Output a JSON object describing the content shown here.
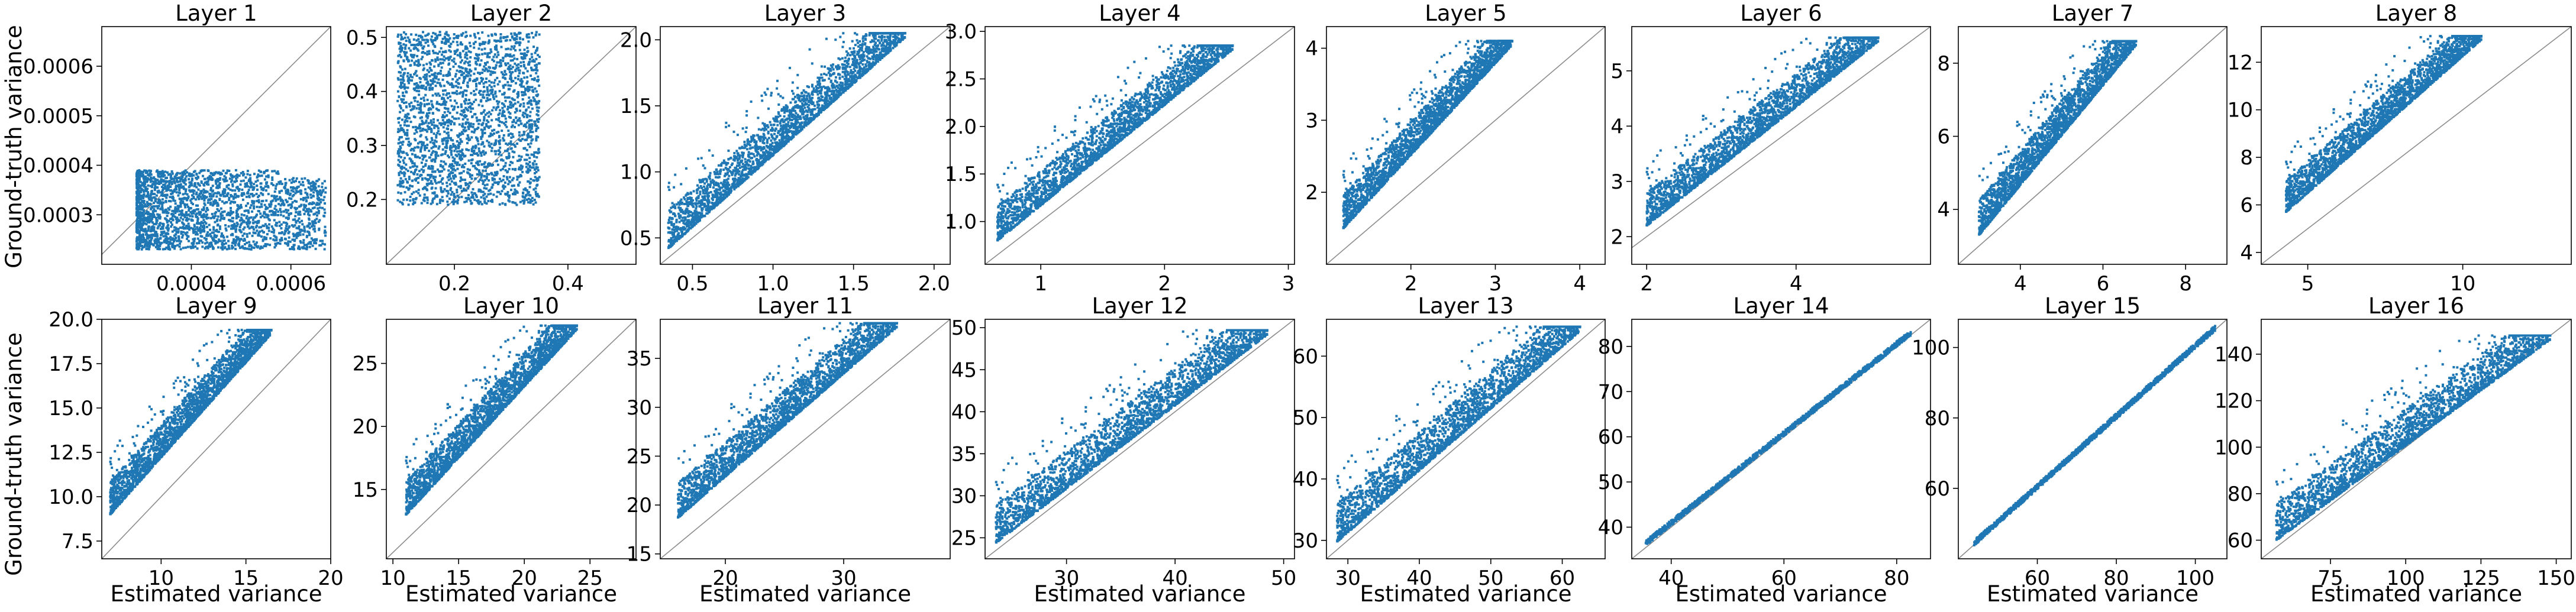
{
  "figure": {
    "ylabel": "Ground-truth variance",
    "xlabel": "Estimated variance",
    "point_color": "#1f77b4",
    "diagonal_color": "#8c8c8c"
  },
  "chart_data": [
    {
      "type": "scatter",
      "title": "Layer 1",
      "xlim": [
        0.00022,
        0.00068
      ],
      "ylim": [
        0.0002,
        0.00068
      ],
      "xticks": [
        "0.0004",
        "0.0006"
      ],
      "xtick_values": [
        0.0004,
        0.0006
      ],
      "yticks": [
        "0.0003",
        "0.0004",
        "0.0005",
        "0.0006"
      ],
      "ytick_values": [
        0.0003,
        0.0004,
        0.0005,
        0.0006
      ],
      "x_range": [
        0.00029,
        0.00067
      ],
      "y_range": [
        0.00023,
        0.00039
      ],
      "pattern": "blob",
      "grid": false,
      "diagonal": true
    },
    {
      "type": "scatter",
      "title": "Layer 2",
      "xlim": [
        0.08,
        0.52
      ],
      "ylim": [
        0.08,
        0.52
      ],
      "xticks": [
        "0.2",
        "0.4"
      ],
      "xtick_values": [
        0.2,
        0.4
      ],
      "yticks": [
        "0.2",
        "0.3",
        "0.4",
        "0.5"
      ],
      "ytick_values": [
        0.2,
        0.3,
        0.4,
        0.5
      ],
      "x_range": [
        0.1,
        0.35
      ],
      "y_range": [
        0.19,
        0.51
      ],
      "pattern": "blob",
      "grid": false,
      "diagonal": true
    },
    {
      "type": "scatter",
      "title": "Layer 3",
      "xlim": [
        0.3,
        2.1
      ],
      "ylim": [
        0.3,
        2.1
      ],
      "xticks": [
        "0.5",
        "1.0",
        "1.5",
        "2.0"
      ],
      "xtick_values": [
        0.5,
        1.0,
        1.5,
        2.0
      ],
      "yticks": [
        "0.5",
        "1.0",
        "1.5",
        "2.0"
      ],
      "ytick_values": [
        0.5,
        1.0,
        1.5,
        2.0
      ],
      "x_range": [
        0.35,
        1.82
      ],
      "y_range": [
        0.42,
        2.05
      ],
      "pattern": "band",
      "grid": false,
      "diagonal": true
    },
    {
      "type": "scatter",
      "title": "Layer 4",
      "xlim": [
        0.55,
        3.05
      ],
      "ylim": [
        0.55,
        3.05
      ],
      "xticks": [
        "1",
        "2",
        "3"
      ],
      "xtick_values": [
        1,
        2,
        3
      ],
      "yticks": [
        "1.0",
        "1.5",
        "2.0",
        "2.5",
        "3.0"
      ],
      "ytick_values": [
        1.0,
        1.5,
        2.0,
        2.5,
        3.0
      ],
      "x_range": [
        0.65,
        2.55
      ],
      "y_range": [
        0.8,
        2.85
      ],
      "pattern": "band",
      "grid": false,
      "diagonal": true
    },
    {
      "type": "scatter",
      "title": "Layer 5",
      "xlim": [
        1.0,
        4.3
      ],
      "ylim": [
        1.0,
        4.3
      ],
      "xticks": [
        "2",
        "3",
        "4"
      ],
      "xtick_values": [
        2,
        3,
        4
      ],
      "yticks": [
        "2",
        "3",
        "4"
      ],
      "ytick_values": [
        2,
        3,
        4
      ],
      "x_range": [
        1.2,
        3.2
      ],
      "y_range": [
        1.5,
        4.1
      ],
      "pattern": "band",
      "grid": false,
      "diagonal": true
    },
    {
      "type": "scatter",
      "title": "Layer 6",
      "xlim": [
        1.8,
        5.8
      ],
      "ylim": [
        1.5,
        5.8
      ],
      "xticks": [
        "2",
        "4"
      ],
      "xtick_values": [
        2,
        4
      ],
      "yticks": [
        "2",
        "3",
        "4",
        "5"
      ],
      "ytick_values": [
        2,
        3,
        4,
        5
      ],
      "x_range": [
        2.0,
        5.1
      ],
      "y_range": [
        2.2,
        5.6
      ],
      "pattern": "band",
      "grid": false,
      "diagonal": true
    },
    {
      "type": "scatter",
      "title": "Layer 7",
      "xlim": [
        2.5,
        9.0
      ],
      "ylim": [
        2.5,
        9.0
      ],
      "xticks": [
        "4",
        "6",
        "8"
      ],
      "xtick_values": [
        4,
        6,
        8
      ],
      "yticks": [
        "4",
        "6",
        "8"
      ],
      "ytick_values": [
        4,
        6,
        8
      ],
      "x_range": [
        3.0,
        6.8
      ],
      "y_range": [
        3.3,
        8.6
      ],
      "pattern": "band",
      "grid": false,
      "diagonal": true
    },
    {
      "type": "scatter",
      "title": "Layer 8",
      "xlim": [
        3.5,
        13.5
      ],
      "ylim": [
        3.5,
        13.5
      ],
      "xticks": [
        "5",
        "10"
      ],
      "xtick_values": [
        5,
        10
      ],
      "yticks": [
        "4",
        "6",
        "8",
        "10",
        "12"
      ],
      "ytick_values": [
        4,
        6,
        8,
        10,
        12
      ],
      "x_range": [
        4.3,
        10.6
      ],
      "y_range": [
        5.7,
        13.1
      ],
      "pattern": "band",
      "grid": false,
      "diagonal": true
    },
    {
      "type": "scatter",
      "title": "Layer 9",
      "xlim": [
        6.5,
        20.0
      ],
      "ylim": [
        6.5,
        20.0
      ],
      "xticks": [
        "10",
        "15",
        "20"
      ],
      "xtick_values": [
        10,
        15,
        20
      ],
      "yticks": [
        "7.5",
        "10.0",
        "12.5",
        "15.0",
        "17.5",
        "20.0"
      ],
      "ytick_values": [
        7.5,
        10.0,
        12.5,
        15.0,
        17.5,
        20.0
      ],
      "x_range": [
        7.0,
        16.5
      ],
      "y_range": [
        9.0,
        19.4
      ],
      "pattern": "band",
      "grid": false,
      "diagonal": true
    },
    {
      "type": "scatter",
      "title": "Layer 10",
      "xlim": [
        9.5,
        28.5
      ],
      "ylim": [
        9.5,
        28.5
      ],
      "xticks": [
        "10",
        "15",
        "20",
        "25"
      ],
      "xtick_values": [
        10,
        15,
        20,
        25
      ],
      "yticks": [
        "15",
        "20",
        "25"
      ],
      "ytick_values": [
        15,
        20,
        25
      ],
      "x_range": [
        11.0,
        24.0
      ],
      "y_range": [
        13.0,
        28.0
      ],
      "pattern": "band",
      "grid": false,
      "diagonal": true
    },
    {
      "type": "scatter",
      "title": "Layer 11",
      "xlim": [
        14.5,
        39.0
      ],
      "ylim": [
        14.5,
        39.0
      ],
      "xticks": [
        "20",
        "30"
      ],
      "xtick_values": [
        20,
        30
      ],
      "yticks": [
        "15",
        "20",
        "25",
        "30",
        "35"
      ],
      "ytick_values": [
        15,
        20,
        25,
        30,
        35
      ],
      "x_range": [
        16.0,
        34.5
      ],
      "y_range": [
        18.7,
        38.6
      ],
      "pattern": "band",
      "grid": false,
      "diagonal": true
    },
    {
      "type": "scatter",
      "title": "Layer 12",
      "xlim": [
        22.5,
        51.0
      ],
      "ylim": [
        22.5,
        51.0
      ],
      "xticks": [
        "30",
        "40",
        "50"
      ],
      "xtick_values": [
        30,
        40,
        50
      ],
      "yticks": [
        "25",
        "30",
        "35",
        "40",
        "45",
        "50"
      ],
      "ytick_values": [
        25,
        30,
        35,
        40,
        45,
        50
      ],
      "x_range": [
        23.5,
        48.5
      ],
      "y_range": [
        24.4,
        49.7
      ],
      "pattern": "band",
      "grid": false,
      "diagonal": true
    },
    {
      "type": "scatter",
      "title": "Layer 13",
      "xlim": [
        27.0,
        66.0
      ],
      "ylim": [
        27.0,
        66.0
      ],
      "xticks": [
        "30",
        "40",
        "50",
        "60"
      ],
      "xtick_values": [
        30,
        40,
        50,
        60
      ],
      "yticks": [
        "30",
        "40",
        "50",
        "60"
      ],
      "ytick_values": [
        30,
        40,
        50,
        60
      ],
      "x_range": [
        28.5,
        62.5
      ],
      "y_range": [
        29.8,
        64.8
      ],
      "pattern": "band",
      "grid": false,
      "diagonal": true
    },
    {
      "type": "scatter",
      "title": "Layer 14",
      "xlim": [
        33.0,
        86.0
      ],
      "ylim": [
        33.0,
        86.0
      ],
      "xticks": [
        "40",
        "60",
        "80"
      ],
      "xtick_values": [
        40,
        60,
        80
      ],
      "yticks": [
        "40",
        "50",
        "60",
        "70",
        "80"
      ],
      "ytick_values": [
        40,
        50,
        60,
        70,
        80
      ],
      "x_range": [
        35.5,
        82.5
      ],
      "y_range": [
        36.5,
        83.0
      ],
      "pattern": "line",
      "grid": false,
      "diagonal": true
    },
    {
      "type": "scatter",
      "title": "Layer 15",
      "xlim": [
        40.0,
        108.0
      ],
      "ylim": [
        40.0,
        108.0
      ],
      "xticks": [
        "60",
        "80",
        "100"
      ],
      "xtick_values": [
        60,
        80,
        100
      ],
      "yticks": [
        "60",
        "80",
        "100"
      ],
      "ytick_values": [
        60,
        80,
        100
      ],
      "x_range": [
        44.0,
        105.0
      ],
      "y_range": [
        44.5,
        105.5
      ],
      "pattern": "line",
      "grid": false,
      "diagonal": true
    },
    {
      "type": "scatter",
      "title": "Layer 16",
      "xlim": [
        52.0,
        155.0
      ],
      "ylim": [
        52.0,
        155.0
      ],
      "xticks": [
        "75",
        "100",
        "125",
        "150"
      ],
      "xtick_values": [
        75,
        100,
        125,
        150
      ],
      "yticks": [
        "60",
        "80",
        "100",
        "120",
        "140"
      ],
      "ytick_values": [
        60,
        80,
        100,
        120,
        140
      ],
      "x_range": [
        57.0,
        148.0
      ],
      "y_range": [
        60.0,
        148.0
      ],
      "pattern": "band",
      "grid": false,
      "diagonal": true
    }
  ]
}
